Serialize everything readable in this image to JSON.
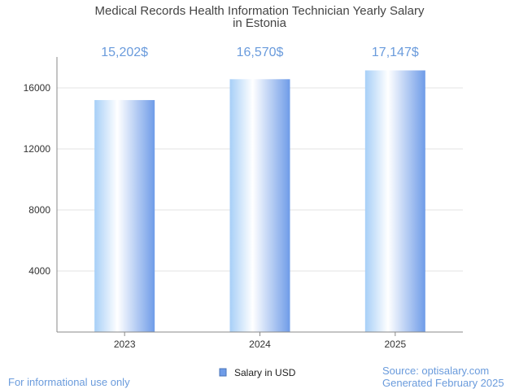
{
  "chart_data": {
    "type": "bar",
    "title": [
      "Medical Records Health Information Technician Yearly Salary",
      "in Estonia"
    ],
    "categories": [
      "2023",
      "2024",
      "2025"
    ],
    "series": [
      {
        "name": "Salary in USD",
        "values": [
          15202,
          16570,
          17147
        ]
      }
    ],
    "data_labels": [
      "15,202$",
      "16,570$",
      "17,147$"
    ],
    "ylim": [
      0,
      18000
    ],
    "yticks": [
      4000,
      8000,
      12000,
      16000
    ],
    "grid": true,
    "legend_position": "bottom",
    "colors": {
      "bar_edge": "#6f9ce8",
      "bar_light": "#ffffff",
      "label": "#6a9bdc"
    }
  },
  "footer": {
    "left": "For informational use only",
    "source": "Source: optisalary.com",
    "generated": "Generated February 2025"
  }
}
